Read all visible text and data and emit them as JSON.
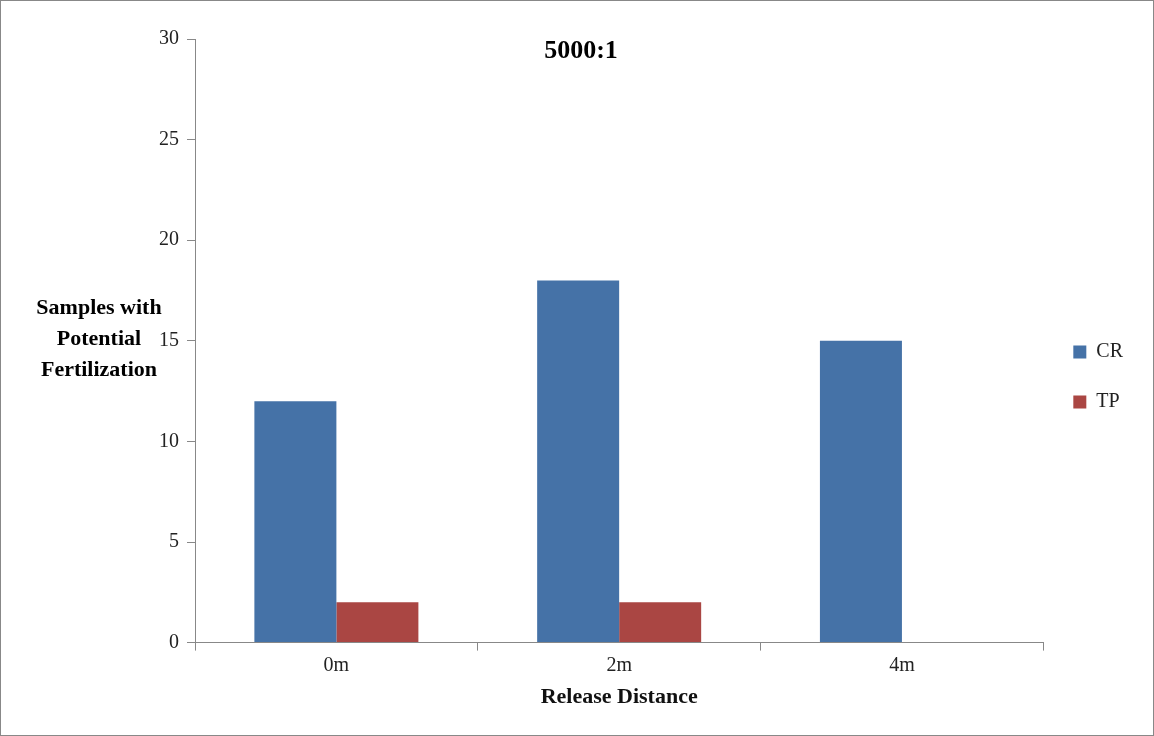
{
  "chart_data": {
    "type": "bar",
    "title": "5000:1",
    "xlabel": "Release Distance",
    "ylabel": "Samples with Potential Fertilization",
    "categories": [
      "0m",
      "2m",
      "4m"
    ],
    "series": [
      {
        "name": "CR",
        "color": "#4572a7",
        "values": [
          12,
          18,
          15
        ]
      },
      {
        "name": "TP",
        "color": "#aa4643",
        "values": [
          2,
          2,
          0
        ]
      }
    ],
    "ylim": [
      0,
      30
    ],
    "yticks": [
      0,
      5,
      10,
      15,
      20,
      25,
      30
    ],
    "grid": false,
    "legend": "right"
  }
}
